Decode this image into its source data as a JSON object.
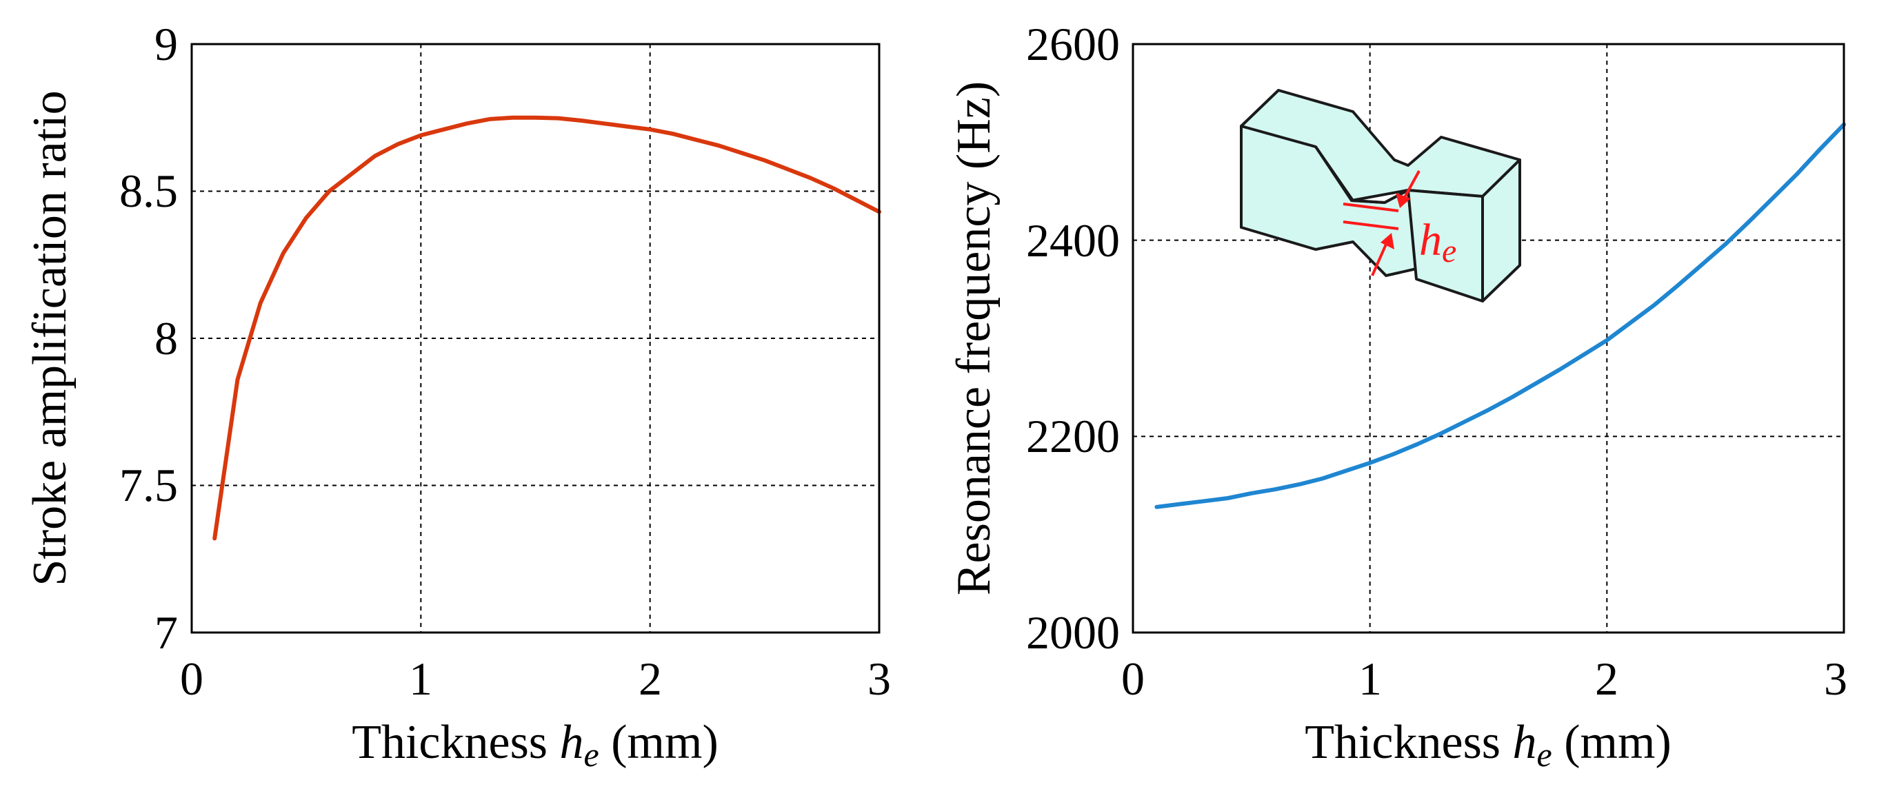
{
  "chart_data": [
    {
      "type": "line",
      "title": "",
      "xlabel_prefix": "Thickness ",
      "xlabel_symbol": "h",
      "xlabel_subscript": "e",
      "xlabel_suffix": " (mm)",
      "ylabel": "Stroke amplification ratio",
      "xlim": [
        0,
        3
      ],
      "ylim": [
        7,
        9
      ],
      "xticks": [
        0,
        1,
        2,
        3
      ],
      "xtick_labels": [
        "0",
        "1",
        "2",
        "3"
      ],
      "yticks": [
        7,
        7.5,
        8,
        8.5,
        9
      ],
      "ytick_labels": [
        "7",
        "7.5",
        "8",
        "8.5",
        "9"
      ],
      "grid": true,
      "series": [
        {
          "name": "Stroke amplification ratio",
          "color": "#d9380d",
          "x": [
            0.1,
            0.2,
            0.3,
            0.4,
            0.5,
            0.6,
            0.7,
            0.8,
            0.9,
            1.0,
            1.1,
            1.2,
            1.3,
            1.4,
            1.5,
            1.6,
            1.7,
            1.8,
            1.9,
            2.0,
            2.1,
            2.2,
            2.3,
            2.4,
            2.5,
            2.6,
            2.7,
            2.8,
            2.9,
            3.0
          ],
          "y": [
            7.32,
            7.86,
            8.12,
            8.29,
            8.41,
            8.5,
            8.56,
            8.62,
            8.66,
            8.69,
            8.71,
            8.73,
            8.745,
            8.75,
            8.75,
            8.748,
            8.74,
            8.73,
            8.72,
            8.71,
            8.695,
            8.675,
            8.655,
            8.63,
            8.605,
            8.575,
            8.545,
            8.51,
            8.47,
            8.43
          ]
        }
      ]
    },
    {
      "type": "line",
      "title": "",
      "xlabel_prefix": "Thickness ",
      "xlabel_symbol": "h",
      "xlabel_subscript": "e",
      "xlabel_suffix": " (mm)",
      "ylabel": "Resonance frequency (Hz)",
      "xlim": [
        0,
        3
      ],
      "ylim": [
        2000,
        2600
      ],
      "xticks": [
        0,
        1,
        2,
        3
      ],
      "xtick_labels": [
        "0",
        "1",
        "2",
        "3"
      ],
      "yticks": [
        2000,
        2200,
        2400,
        2600
      ],
      "ytick_labels": [
        "2000",
        "2200",
        "2400",
        "2600"
      ],
      "grid": true,
      "series": [
        {
          "name": "Resonance frequency",
          "color": "#1f86d1",
          "x": [
            0.1,
            0.2,
            0.3,
            0.4,
            0.5,
            0.6,
            0.7,
            0.8,
            0.9,
            1.0,
            1.1,
            1.2,
            1.3,
            1.4,
            1.5,
            1.6,
            1.7,
            1.8,
            1.9,
            2.0,
            2.1,
            2.2,
            2.3,
            2.4,
            2.5,
            2.6,
            2.7,
            2.8,
            2.9,
            3.0
          ],
          "y": [
            2128,
            2131,
            2134,
            2137,
            2142,
            2146,
            2151,
            2157,
            2165,
            2173,
            2182,
            2192,
            2203,
            2215,
            2227,
            2240,
            2254,
            2268,
            2283,
            2298,
            2316,
            2334,
            2354,
            2375,
            2396,
            2419,
            2443,
            2467,
            2493,
            2518
          ]
        }
      ],
      "inset": {
        "label_symbol": "h",
        "label_subscript": "e"
      }
    }
  ]
}
